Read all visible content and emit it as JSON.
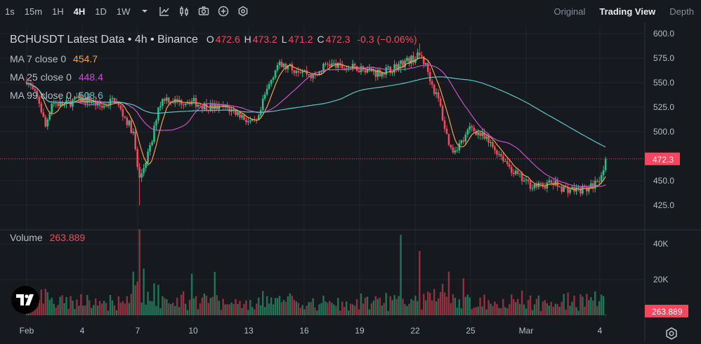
{
  "toolbar": {
    "timeframes": [
      "1s",
      "15m",
      "1H",
      "4H",
      "1D",
      "1W"
    ],
    "active_timeframe": "4H",
    "views": [
      "Original",
      "Trading View",
      "Depth"
    ],
    "active_view": "Trading View"
  },
  "header": {
    "symbol_line": "BCHUSDT Latest Data • 4h • Binance",
    "o_label": "O",
    "o_value": "472.6",
    "h_label": "H",
    "h_value": "473.2",
    "l_label": "L",
    "l_value": "471.2",
    "c_label": "C",
    "c_value": "472.3",
    "change": "-0.3 (−0.06%)"
  },
  "ma": [
    {
      "label": "MA 7 close 0",
      "value": "454.7",
      "color": "#f0a24b"
    },
    {
      "label": "MA 25 close 0",
      "value": "448.4",
      "color": "#c94fd2"
    },
    {
      "label": "MA 99 close 0",
      "value": "508.6",
      "color": "#5ec4c8"
    }
  ],
  "volume_legend": {
    "label": "Volume",
    "value": "263.889"
  },
  "colors": {
    "up": "#2ebd85",
    "down": "#f6465d",
    "bg": "#161a1e",
    "grid": "#23272d",
    "last_price_badge": "#f6465d"
  },
  "chart_data": [
    {
      "type": "candlestick",
      "title": "BCHUSDT Latest Data • 4h • Binance",
      "interval": "4h",
      "x_tick_labels": [
        "Feb",
        "4",
        "7",
        "10",
        "13",
        "16",
        "19",
        "22",
        "25",
        "Mar",
        "4"
      ],
      "y_tick_labels": [
        "600.0",
        "575.0",
        "550.0",
        "525.0",
        "500.0",
        "450.0",
        "425.0"
      ],
      "ylim": [
        410,
        612
      ],
      "last_price": 472.3,
      "close_path": [
        {
          "day": 0,
          "close": 553
        },
        {
          "day": 1,
          "close": 530
        },
        {
          "day": 1.5,
          "close": 505
        },
        {
          "day": 2,
          "close": 530
        },
        {
          "day": 3,
          "close": 527
        },
        {
          "day": 4,
          "close": 533
        },
        {
          "day": 5,
          "close": 532
        },
        {
          "day": 6,
          "close": 525
        },
        {
          "day": 7,
          "close": 533
        },
        {
          "day": 8.5,
          "close": 500
        },
        {
          "day": 9,
          "close": 450
        },
        {
          "day": 9.5,
          "close": 470
        },
        {
          "day": 10,
          "close": 488
        },
        {
          "day": 10.5,
          "close": 525
        },
        {
          "day": 11,
          "close": 535
        },
        {
          "day": 12,
          "close": 530
        },
        {
          "day": 13,
          "close": 532
        },
        {
          "day": 14,
          "close": 527
        },
        {
          "day": 15,
          "close": 525
        },
        {
          "day": 16,
          "close": 524
        },
        {
          "day": 17,
          "close": 518
        },
        {
          "day": 18,
          "close": 508
        },
        {
          "day": 18.5,
          "close": 510
        },
        {
          "day": 19,
          "close": 535
        },
        {
          "day": 20,
          "close": 568
        },
        {
          "day": 21,
          "close": 565
        },
        {
          "day": 22,
          "close": 563
        },
        {
          "day": 23,
          "close": 555
        },
        {
          "day": 24,
          "close": 570
        },
        {
          "day": 25,
          "close": 566
        },
        {
          "day": 26,
          "close": 565
        },
        {
          "day": 27,
          "close": 565
        },
        {
          "day": 28,
          "close": 560
        },
        {
          "day": 29,
          "close": 563
        },
        {
          "day": 30,
          "close": 570
        },
        {
          "day": 31,
          "close": 575
        },
        {
          "day": 31.5,
          "close": 578
        },
        {
          "day": 32,
          "close": 565
        },
        {
          "day": 32.5,
          "close": 545
        },
        {
          "day": 33,
          "close": 530
        },
        {
          "day": 33.5,
          "close": 500
        },
        {
          "day": 34,
          "close": 480
        },
        {
          "day": 35,
          "close": 492
        },
        {
          "day": 35.5,
          "close": 505
        },
        {
          "day": 36,
          "close": 500
        },
        {
          "day": 37,
          "close": 488
        },
        {
          "day": 38,
          "close": 475
        },
        {
          "day": 39,
          "close": 458
        },
        {
          "day": 40,
          "close": 447
        },
        {
          "day": 41,
          "close": 444
        },
        {
          "day": 42,
          "close": 448
        },
        {
          "day": 43,
          "close": 442
        },
        {
          "day": 44,
          "close": 441
        },
        {
          "day": 45,
          "close": 442
        },
        {
          "day": 45.5,
          "close": 448
        },
        {
          "day": 46,
          "close": 458
        },
        {
          "day": 46.3,
          "close": 472.3
        }
      ],
      "series": [
        {
          "name": "MA 7 close 0",
          "last": 454.7
        },
        {
          "name": "MA 25 close 0",
          "last": 448.4
        },
        {
          "name": "MA 99 close 0",
          "last": 508.6
        }
      ]
    },
    {
      "type": "bar",
      "title": "Volume",
      "y_tick_labels": [
        "40K",
        "20K"
      ],
      "ylim": [
        0,
        52000
      ],
      "last_value": 263.889
    }
  ]
}
